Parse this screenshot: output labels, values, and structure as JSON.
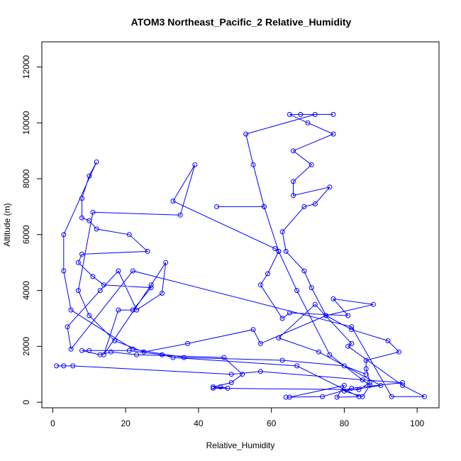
{
  "chart_data": {
    "type": "line",
    "title": "ATOM3 Northeast_Pacific_2 Relative_Humidity",
    "xlabel": "Relative_Humidity",
    "ylabel": "Altitude (m)",
    "xlim": [
      -3,
      106
    ],
    "ylim": [
      -200,
      12900
    ],
    "xticks": [
      "0",
      "20",
      "40",
      "60",
      "80",
      "100"
    ],
    "yticks": [
      "0",
      "2000",
      "4000",
      "6000",
      "8000",
      "10000",
      "12000"
    ],
    "grid": false,
    "legend": "none",
    "series": [
      {
        "color": "#0000ff",
        "marker": "open-circle",
        "points": [
          [
            1,
            1300
          ],
          [
            3,
            1300
          ],
          [
            5.5,
            1300
          ],
          [
            49,
            1000
          ],
          [
            57,
            1100
          ],
          [
            85,
            800
          ],
          [
            96,
            700
          ],
          [
            82,
            500
          ],
          [
            74,
            200
          ],
          [
            64,
            180
          ],
          [
            65,
            180
          ],
          [
            80,
            600
          ],
          [
            78,
            180
          ],
          [
            84,
            200
          ],
          [
            67,
            1300
          ],
          [
            33,
            1600
          ],
          [
            30,
            1700
          ],
          [
            21,
            1850
          ],
          [
            10,
            1850
          ],
          [
            8,
            1850
          ],
          [
            13,
            1700
          ],
          [
            16,
            1800
          ],
          [
            23,
            1700
          ],
          [
            47,
            1600
          ],
          [
            52,
            1000
          ],
          [
            49,
            700
          ],
          [
            44,
            550
          ],
          [
            48,
            500
          ],
          [
            46,
            550
          ],
          [
            44,
            500
          ],
          [
            84,
            450
          ],
          [
            87,
            700
          ],
          [
            86,
            1200
          ],
          [
            86,
            1500
          ],
          [
            95,
            1800
          ],
          [
            92,
            2200
          ],
          [
            82,
            2600
          ],
          [
            75,
            3100
          ],
          [
            71,
            4100
          ],
          [
            69,
            4700
          ],
          [
            64,
            5400
          ],
          [
            63,
            6100
          ],
          [
            69,
            7000
          ],
          [
            72,
            7100
          ],
          [
            76,
            7700
          ],
          [
            66,
            7400
          ],
          [
            66,
            7900
          ],
          [
            71,
            8500
          ],
          [
            66,
            9000
          ],
          [
            77,
            9600
          ],
          [
            70,
            10000
          ],
          [
            65,
            10300
          ],
          [
            68,
            10300
          ],
          [
            77,
            10300
          ],
          [
            72,
            10300
          ],
          [
            53,
            9600
          ],
          [
            55,
            8500
          ],
          [
            58,
            7000
          ],
          [
            45,
            7000
          ],
          [
            58,
            7000
          ],
          [
            62,
            5400
          ],
          [
            59,
            4600
          ],
          [
            57,
            4200
          ],
          [
            63,
            3000
          ],
          [
            65,
            3200
          ],
          [
            81,
            3100
          ],
          [
            77,
            3700
          ],
          [
            88,
            3500
          ],
          [
            75,
            3100
          ],
          [
            57,
            2100
          ],
          [
            55,
            2600
          ],
          [
            37,
            2100
          ],
          [
            25,
            1800
          ],
          [
            17,
            2200
          ],
          [
            10,
            3100
          ],
          [
            7,
            4000
          ],
          [
            11,
            6800
          ],
          [
            35,
            6700
          ],
          [
            39,
            8500
          ],
          [
            33,
            7200
          ],
          [
            61,
            5500
          ],
          [
            62,
            5400
          ],
          [
            67,
            4000
          ],
          [
            76,
            1700
          ],
          [
            87,
            600
          ],
          [
            85,
            200
          ],
          [
            80,
            400
          ],
          [
            90,
            600
          ],
          [
            73,
            1800
          ],
          [
            62,
            2300
          ],
          [
            72,
            3500
          ],
          [
            82,
            2100
          ],
          [
            81,
            2000
          ],
          [
            96,
            600
          ],
          [
            102,
            200
          ],
          [
            93,
            200
          ],
          [
            82,
            2700
          ],
          [
            22,
            4700
          ],
          [
            5,
            1900
          ],
          [
            4,
            2700
          ],
          [
            13,
            4000
          ],
          [
            18,
            4700
          ],
          [
            23,
            3300
          ],
          [
            30,
            3900
          ],
          [
            31,
            5000
          ],
          [
            27,
            4200
          ],
          [
            14,
            1700
          ],
          [
            18,
            3300
          ],
          [
            22,
            3300
          ],
          [
            27,
            4100
          ],
          [
            14,
            4200
          ],
          [
            11,
            4500
          ],
          [
            7,
            5000
          ],
          [
            8,
            5300
          ],
          [
            26,
            5400
          ],
          [
            21,
            6000
          ],
          [
            12,
            6200
          ],
          [
            10,
            6500
          ],
          [
            8,
            6600
          ],
          [
            8,
            7300
          ],
          [
            10,
            8100
          ],
          [
            12,
            8600
          ],
          [
            3,
            6000
          ],
          [
            3,
            4700
          ],
          [
            5,
            3300
          ],
          [
            22,
            1900
          ],
          [
            36,
            1600
          ],
          [
            63,
            1500
          ],
          [
            80,
            1300
          ],
          [
            86,
            1000
          ]
        ]
      }
    ]
  }
}
